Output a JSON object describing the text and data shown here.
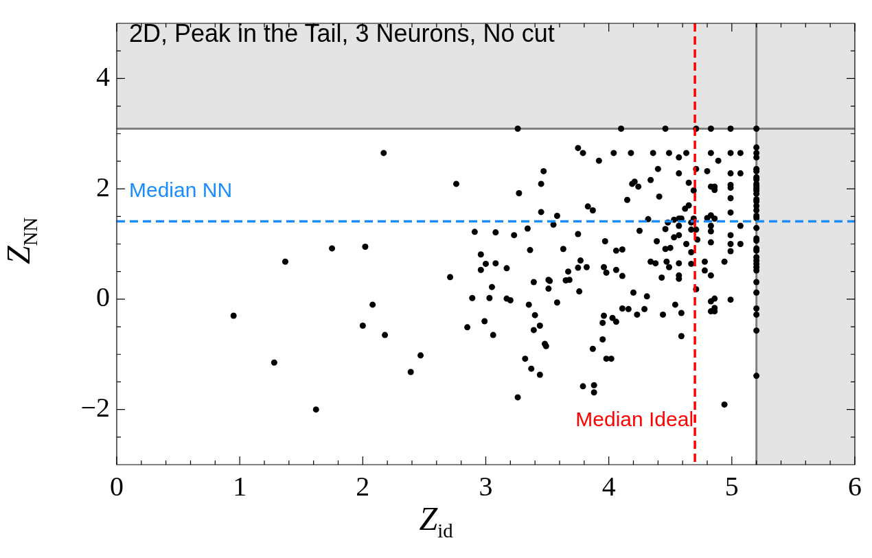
{
  "chart_data": {
    "type": "scatter",
    "title": "2D, Peak in the Tail, 3 Neurons, No cut",
    "xlabel": "Z$_{id}$",
    "ylabel": "Z$_{NN}$",
    "marker": "circle",
    "xlim": [
      0,
      6
    ],
    "ylim": [
      -3,
      5
    ],
    "xticks": [
      0,
      {
        "value": 0.2,
        "label": null
      },
      {
        "value": 0.4,
        "label": null
      },
      {
        "value": 0.6,
        "label": null
      },
      {
        "value": 0.8,
        "label": null
      },
      1,
      {
        "value": 1.2,
        "label": null
      },
      {
        "value": 1.4,
        "label": null
      },
      {
        "value": 1.6,
        "label": null
      },
      {
        "value": 1.8,
        "label": null
      },
      2,
      {
        "value": 2.2,
        "label": null
      },
      {
        "value": 2.4,
        "label": null
      },
      {
        "value": 2.6,
        "label": null
      },
      {
        "value": 2.8,
        "label": null
      },
      3,
      {
        "value": 3.2,
        "label": null
      },
      {
        "value": 3.4,
        "label": null
      },
      {
        "value": 3.6,
        "label": null
      },
      {
        "value": 3.8,
        "label": null
      },
      4,
      {
        "value": 4.2,
        "label": null
      },
      {
        "value": 4.4,
        "label": null
      },
      {
        "value": 4.6,
        "label": null
      },
      {
        "value": 4.8,
        "label": null
      },
      5,
      {
        "value": 5.2,
        "label": null
      },
      {
        "value": 5.4,
        "label": null
      },
      {
        "value": 5.6,
        "label": null
      },
      {
        "value": 5.8,
        "label": null
      },
      6
    ],
    "yticks": [
      {
        "value": -2.5,
        "label": null
      },
      {
        "value": -2,
        "label": "−2"
      },
      {
        "value": -1.5,
        "label": null
      },
      {
        "value": -1,
        "label": null
      },
      {
        "value": -0.5,
        "label": null
      },
      0,
      {
        "value": 0.5,
        "label": null
      },
      {
        "value": 1,
        "label": null
      },
      {
        "value": 1.5,
        "label": null
      },
      2,
      {
        "value": 2.5,
        "label": null
      },
      {
        "value": 3,
        "label": null
      },
      {
        "value": 3.5,
        "label": null
      },
      4,
      {
        "value": 4.5,
        "label": null
      }
    ],
    "bands": [
      {
        "axis": "y",
        "from": 3.09,
        "to": 5,
        "color": "#e4e4e4"
      },
      {
        "axis": "x",
        "from": 5.2,
        "to": 6,
        "color": "#e4e4e4"
      }
    ],
    "ref_lines": [
      {
        "axis": "y",
        "value": 1.41,
        "label": "Median NN",
        "color": "#1a8cff",
        "line_style": "dashed"
      },
      {
        "axis": "x",
        "value": 4.7,
        "label": "Median Ideal",
        "color": "#ff0000",
        "line_style": "dashed"
      }
    ],
    "series": [
      {
        "color": "#000000",
        "x": [
          0.95,
          1.28,
          1.62,
          2.08,
          2.0,
          2.18,
          2.47,
          2.39,
          2.89,
          3.03,
          3.05,
          3.17,
          3.2,
          3.35,
          3.4,
          3.44,
          3.39,
          2.85,
          2.99,
          3.06,
          3.48,
          3.49,
          3.32,
          3.37,
          3.44,
          3.26,
          3.39,
          3.26,
          2.17,
          2.76,
          1.37,
          1.75,
          2.02,
          3.47,
          3.45,
          3.27,
          3.45,
          2.91,
          3.08,
          3.23,
          3.34,
          3.36,
          2.96,
          3.0,
          2.96,
          3.08,
          3.17,
          2.71,
          3.51,
          3.52,
          3.51,
          4.1,
          4.46,
          4.71,
          4.83,
          4.99,
          5.2,
          3.75,
          3.79,
          4.04,
          4.18,
          4.36,
          4.49,
          4.63,
          4.57,
          4.83,
          4.99,
          5.07,
          3.92,
          4.89,
          4.4,
          4.57,
          4.71,
          4.8,
          4.99,
          5.07,
          4.19,
          4.21,
          4.24,
          4.34,
          4.65,
          4.83,
          4.86,
          4.86,
          4.99,
          4.99,
          4.69,
          4.15,
          4.41,
          4.99,
          3.83,
          3.87,
          4.65,
          4.62,
          4.99,
          3.58,
          3.55,
          4.32,
          4.48,
          4.53,
          4.57,
          4.59,
          4.69,
          4.67,
          4.8,
          4.83,
          4.86,
          4.83,
          5.07,
          4.25,
          4.46,
          4.57,
          4.67,
          4.71,
          4.83,
          3.75,
          4.53,
          4.57,
          4.99,
          3.97,
          4.39,
          4.72,
          4.83,
          4.99,
          5.07,
          3.63,
          4.06,
          4.11,
          4.46,
          4.5,
          4.63,
          4.99,
          4.67,
          3.77,
          3.75,
          3.82,
          3.96,
          3.98,
          4.06,
          4.11,
          4.34,
          4.38,
          4.47,
          4.49,
          4.57,
          4.67,
          4.78,
          4.94,
          4.78,
          4.83,
          4.57,
          4.57,
          4.43,
          3.67,
          3.65,
          3.68,
          3.76,
          4.2,
          4.71,
          3.58,
          4.31,
          4.11,
          4.16,
          4.29,
          4.23,
          4.44,
          4.54,
          4.59,
          4.83,
          4.86,
          4.99,
          4.83,
          4.86,
          4.86,
          3.96,
          3.95,
          4.03,
          4.06,
          4.59,
          3.95,
          3.87,
          3.98,
          4.02,
          3.79,
          3.88,
          3.88,
          4.94,
          5.2,
          5.2,
          5.2,
          5.2,
          5.2,
          5.2,
          5.2,
          5.2,
          5.2,
          5.2,
          5.2,
          5.2,
          5.2,
          5.2,
          5.2,
          5.2,
          5.2,
          5.2,
          5.2,
          5.2,
          5.2,
          5.2,
          5.2,
          5.2,
          5.2,
          5.2,
          5.2,
          5.2,
          5.2,
          5.2,
          5.2,
          5.2,
          5.2,
          5.2
        ],
        "values": [
          -0.3,
          -1.15,
          -2.0,
          -0.1,
          -0.48,
          -0.65,
          -1.02,
          -1.32,
          0.02,
          0.02,
          0.22,
          0.01,
          -0.02,
          -0.1,
          -0.29,
          -0.48,
          -0.56,
          -0.51,
          -0.4,
          -0.65,
          -0.81,
          -0.85,
          -1.08,
          -1.26,
          -1.37,
          -1.78,
          0.31,
          3.09,
          2.65,
          2.09,
          0.68,
          0.92,
          0.95,
          2.32,
          2.09,
          1.92,
          1.58,
          1.22,
          1.21,
          1.16,
          1.28,
          0.89,
          0.81,
          0.64,
          0.53,
          0.65,
          0.56,
          0.4,
          0.35,
          0.33,
          0.19,
          3.09,
          3.09,
          3.09,
          3.09,
          3.09,
          3.09,
          2.74,
          2.65,
          2.65,
          2.65,
          2.65,
          2.65,
          2.65,
          2.57,
          2.65,
          2.65,
          2.65,
          2.51,
          2.51,
          2.36,
          2.28,
          2.36,
          2.32,
          2.28,
          2.28,
          2.09,
          2.13,
          2.04,
          2.16,
          2.11,
          2.04,
          2.04,
          1.98,
          2.07,
          2.02,
          1.97,
          1.8,
          1.86,
          1.83,
          1.68,
          1.61,
          1.7,
          1.64,
          1.57,
          1.51,
          1.35,
          1.45,
          1.39,
          1.44,
          1.46,
          1.46,
          1.46,
          1.39,
          1.47,
          1.52,
          1.46,
          1.33,
          1.33,
          1.24,
          1.27,
          1.33,
          1.26,
          1.26,
          1.23,
          1.18,
          1.12,
          1.16,
          1.16,
          1.05,
          1.05,
          1.08,
          1.03,
          1.0,
          1.0,
          0.91,
          0.88,
          0.9,
          0.91,
          0.93,
          1.0,
          0.87,
          0.85,
          0.7,
          0.57,
          0.58,
          0.58,
          0.48,
          0.53,
          0.42,
          0.68,
          0.65,
          0.68,
          0.58,
          0.65,
          0.64,
          0.68,
          0.68,
          0.52,
          0.43,
          0.43,
          0.37,
          0.39,
          0.5,
          0.34,
          0.35,
          0.14,
          0.12,
          0.18,
          -0.06,
          0.05,
          -0.17,
          -0.18,
          -0.18,
          -0.28,
          -0.28,
          -0.1,
          -0.25,
          -0.04,
          0.01,
          -0.01,
          -0.22,
          -0.22,
          -0.16,
          -0.3,
          -0.43,
          -0.34,
          -0.41,
          -0.67,
          -0.73,
          -0.9,
          -1.08,
          -1.08,
          -1.58,
          -1.56,
          -1.69,
          -1.91,
          2.75,
          2.65,
          2.57,
          2.36,
          2.32,
          2.21,
          2.17,
          2.09,
          2.05,
          2.01,
          1.97,
          1.91,
          1.81,
          1.77,
          1.69,
          1.61,
          1.51,
          1.47,
          1.29,
          1.1,
          1.06,
          0.92,
          0.88,
          0.76,
          0.7,
          0.64,
          0.58,
          0.52,
          0.31,
          0.12,
          -0.17,
          -0.28,
          -0.57,
          -1.39
        ]
      }
    ]
  }
}
